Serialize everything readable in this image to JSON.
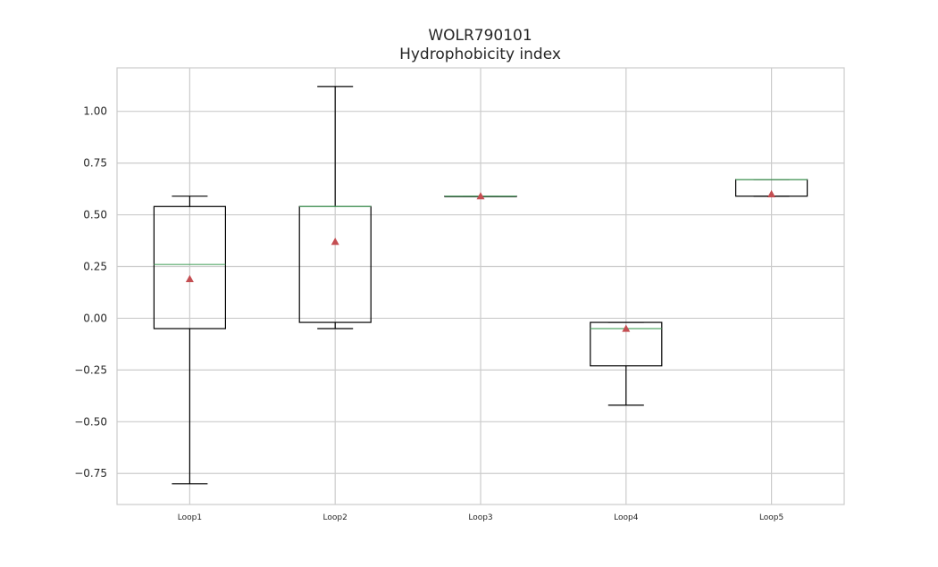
{
  "chart_data": {
    "type": "box",
    "title": "WOLR790101",
    "subtitle": "Hydrophobicity index",
    "xlabel": "",
    "ylabel": "",
    "categories": [
      "Loop1",
      "Loop2",
      "Loop3",
      "Loop4",
      "Loop5"
    ],
    "ylim": [
      -0.9,
      1.21
    ],
    "yticks": [
      -0.75,
      -0.5,
      -0.25,
      0.0,
      0.25,
      0.5,
      0.75,
      1.0
    ],
    "ytick_labels": [
      "−0.75",
      "−0.50",
      "−0.25",
      "0.00",
      "0.25",
      "0.50",
      "0.75",
      "1.00"
    ],
    "grid": true,
    "boxes": [
      {
        "whislo": -0.8,
        "q1": -0.05,
        "med": 0.26,
        "q3": 0.54,
        "whishi": 0.59,
        "mean": 0.19
      },
      {
        "whislo": -0.05,
        "q1": -0.02,
        "med": 0.54,
        "q3": 0.54,
        "whishi": 1.12,
        "mean": 0.37
      },
      {
        "whislo": 0.59,
        "q1": 0.59,
        "med": 0.59,
        "q3": 0.59,
        "whishi": 0.59,
        "mean": 0.59
      },
      {
        "whislo": -0.42,
        "q1": -0.23,
        "med": -0.05,
        "q3": -0.02,
        "whishi": -0.02,
        "mean": -0.05
      },
      {
        "whislo": 0.59,
        "q1": 0.59,
        "med": 0.67,
        "q3": 0.67,
        "whishi": 0.67,
        "mean": 0.6
      }
    ],
    "colors": {
      "box": "#000000",
      "median": "#55a868",
      "mean": "#c44e52",
      "grid": "#cccccc",
      "spine": "#cccccc"
    }
  }
}
